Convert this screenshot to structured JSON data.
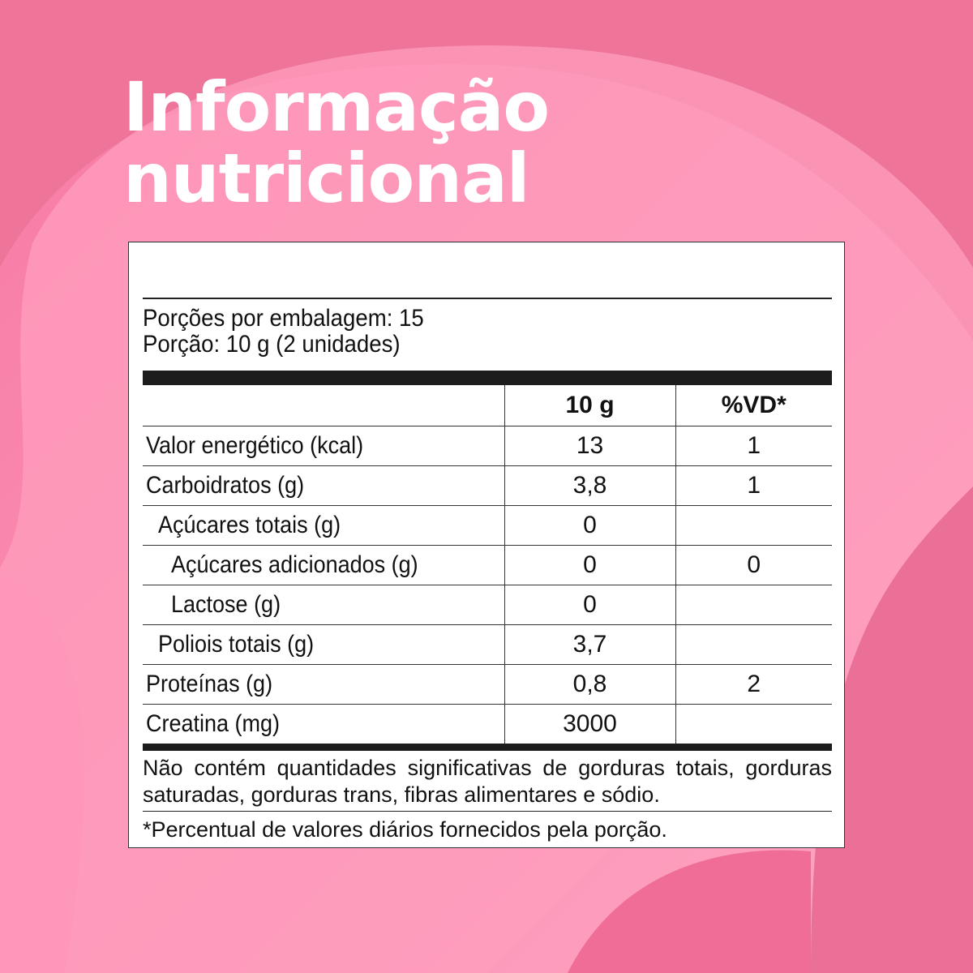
{
  "title": [
    "Informação",
    "nutricional"
  ],
  "colors": {
    "background": "#f67fa6",
    "light": "#ffa3c2",
    "dark": "#e96b93"
  },
  "servings_per_package": "Porções por embalagem: 15",
  "serving_size": "Porção: 10 g (2 unidades)",
  "columns": [
    "",
    "10 g",
    "%VD*"
  ],
  "rows": [
    {
      "label": "Valor energético (kcal)",
      "amount": "13",
      "dv": "1",
      "indent": 0
    },
    {
      "label": "Carboidratos (g)",
      "amount": "3,8",
      "dv": "1",
      "indent": 0
    },
    {
      "label": "Açúcares totais (g)",
      "amount": "0",
      "dv": "",
      "indent": 1
    },
    {
      "label": "Açúcares adicionados (g)",
      "amount": "0",
      "dv": "0",
      "indent": 2
    },
    {
      "label": "Lactose (g)",
      "amount": "0",
      "dv": "",
      "indent": 2
    },
    {
      "label": "Poliois totais (g)",
      "amount": "3,7",
      "dv": "",
      "indent": 1
    },
    {
      "label": "Proteínas (g)",
      "amount": "0,8",
      "dv": "2",
      "indent": 0
    },
    {
      "label": "Creatina (mg)",
      "amount": "3000",
      "dv": "",
      "indent": 0
    }
  ],
  "note": "Não contém quantidades significativas de gorduras totais, gorduras saturadas, gorduras trans, fibras alimentares e sódio.",
  "footnote": "*Percentual de valores diários fornecidos pela porção."
}
